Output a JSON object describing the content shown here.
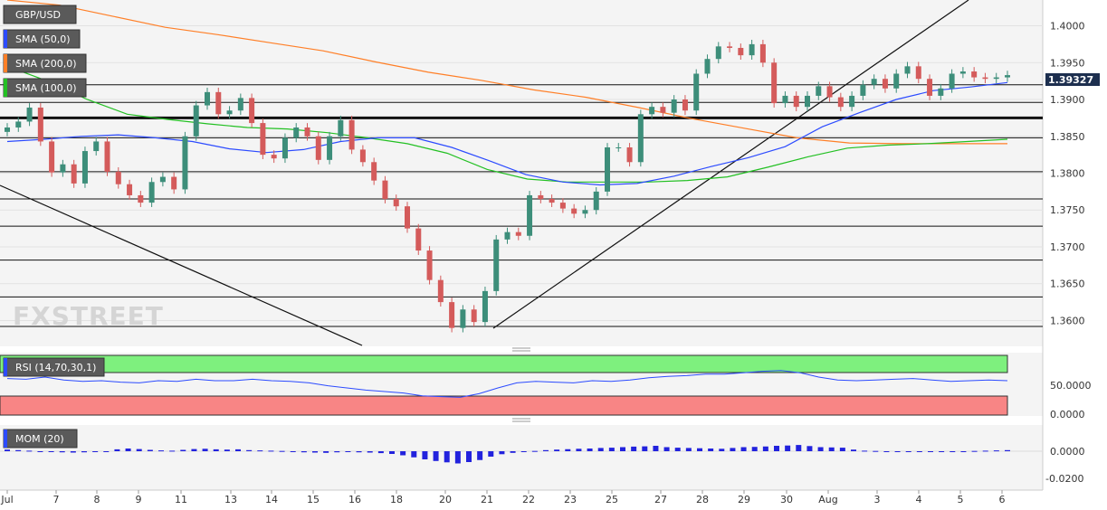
{
  "chart_data": [
    {
      "type": "candlestick",
      "symbol": "GBP/USD",
      "timeframe": "4h",
      "indicators": [
        {
          "name": "SMA (50,0)",
          "color": "#2c4bff"
        },
        {
          "name": "SMA (200,0)",
          "color": "#ff7f27"
        },
        {
          "name": "SMA (100,0)",
          "color": "#23c023"
        }
      ],
      "ylim": [
        1.3565,
        1.4035
      ],
      "y_ticks": [
        "1.4000",
        "1.3950",
        "1.3900",
        "1.3850",
        "1.3800",
        "1.3750",
        "1.3700",
        "1.3650",
        "1.3600"
      ],
      "last_price": "1.39327",
      "x_labels": [
        "Jul",
        "7",
        "8",
        "9",
        "11",
        "13",
        "14",
        "15",
        "16",
        "18",
        "20",
        "21",
        "22",
        "23",
        "25",
        "27",
        "28",
        "29",
        "30",
        "Aug",
        "3",
        "4",
        "5",
        "6"
      ],
      "watermark": "FXSTREET",
      "horizontal_levels": [
        1.392,
        1.3896,
        1.3875,
        1.3848,
        1.3802,
        1.3765,
        1.3728,
        1.3682,
        1.3632,
        1.3592
      ],
      "thick_level": 1.3875,
      "candles_close": [
        1.3862,
        1.387,
        1.3889,
        1.3843,
        1.3801,
        1.3812,
        1.3786,
        1.383,
        1.3843,
        1.3802,
        1.3785,
        1.377,
        1.376,
        1.3788,
        1.3795,
        1.3778,
        1.385,
        1.3892,
        1.391,
        1.388,
        1.3885,
        1.3902,
        1.3868,
        1.3825,
        1.382,
        1.3848,
        1.3862,
        1.385,
        1.3818,
        1.385,
        1.3872,
        1.3832,
        1.3815,
        1.379,
        1.3765,
        1.3755,
        1.3725,
        1.3695,
        1.3655,
        1.3625,
        1.359,
        1.3615,
        1.3598,
        1.364,
        1.371,
        1.372,
        1.3715,
        1.377,
        1.3765,
        1.376,
        1.3752,
        1.3745,
        1.375,
        1.3775,
        1.3835,
        1.3835,
        1.3815,
        1.388,
        1.389,
        1.3882,
        1.39,
        1.3885,
        1.3935,
        1.3955,
        1.3972,
        1.397,
        1.396,
        1.3975,
        1.395,
        1.3895,
        1.3905,
        1.389,
        1.3905,
        1.3918,
        1.3903,
        1.389,
        1.3905,
        1.392,
        1.3928,
        1.3915,
        1.3935,
        1.3945,
        1.3928,
        1.3905,
        1.3915,
        1.3935,
        1.3938,
        1.393,
        1.3928,
        1.393,
        1.3933
      ],
      "sma50": [
        1.3843,
        1.3846,
        1.385,
        1.3852,
        1.3848,
        1.3843,
        1.3833,
        1.3828,
        1.3832,
        1.3843,
        1.3848,
        1.3848,
        1.3835,
        1.3817,
        1.3798,
        1.3788,
        1.3784,
        1.3786,
        1.3796,
        1.3809,
        1.3821,
        1.3836,
        1.3863,
        1.3882,
        1.39,
        1.3912,
        1.3917,
        1.3923
      ],
      "sma200": [
        1.4035,
        1.4028,
        1.4013,
        1.3998,
        1.3988,
        1.3977,
        1.3966,
        1.3951,
        1.3937,
        1.3926,
        1.3913,
        1.3903,
        1.3889,
        1.3874,
        1.3861,
        1.3848,
        1.3841,
        1.384,
        1.384,
        1.384
      ],
      "sma100": [
        1.3945,
        1.3925,
        1.39,
        1.388,
        1.3873,
        1.3867,
        1.3862,
        1.386,
        1.3855,
        1.3848,
        1.384,
        1.3827,
        1.3805,
        1.3792,
        1.3788,
        1.3788,
        1.3788,
        1.379,
        1.3795,
        1.3808,
        1.3822,
        1.3834,
        1.3838,
        1.384,
        1.3843,
        1.3846
      ]
    },
    {
      "type": "line",
      "title": "RSI (14,70,30,1)",
      "y_ticks": [
        "50.0000",
        "0.0000"
      ],
      "overbought": 70,
      "oversold": 30,
      "values": [
        58,
        57,
        60,
        56,
        54,
        55,
        53,
        52,
        55,
        54,
        57,
        55,
        55,
        57,
        55,
        54,
        52,
        48,
        45,
        42,
        40,
        38,
        34,
        33,
        32,
        37,
        45,
        52,
        54,
        53,
        52,
        55,
        54,
        56,
        59,
        61,
        62,
        64,
        64,
        66,
        68,
        69,
        66,
        60,
        56,
        55,
        56,
        57,
        58,
        56,
        54,
        55,
        56,
        55
      ]
    },
    {
      "type": "bar",
      "title": "MOM (20)",
      "y_ticks": [
        "0.0000",
        "-0.0200"
      ],
      "values": [
        0.0012,
        0.0008,
        0.0004,
        -0.0004,
        -0.0006,
        -0.0008,
        -0.001,
        -0.0008,
        -0.0006,
        -0.0002,
        0.0014,
        0.002,
        0.0016,
        0.001,
        0.0006,
        0.0004,
        0.001,
        0.0016,
        0.0018,
        0.0014,
        0.0012,
        0.0014,
        0.0008,
        0.0006,
        0.0004,
        0.0002,
        -0.0004,
        -0.0008,
        -0.001,
        -0.0012,
        -0.0008,
        -0.0006,
        -0.0008,
        -0.001,
        -0.0014,
        -0.002,
        -0.003,
        -0.0045,
        -0.006,
        -0.0072,
        -0.0082,
        -0.009,
        -0.008,
        -0.0065,
        -0.004,
        -0.0022,
        -0.0012,
        -0.0004,
        0.0002,
        0.0008,
        0.0012,
        0.0015,
        0.0018,
        0.002,
        0.0024,
        0.0026,
        0.003,
        0.0034,
        0.0036,
        0.004,
        0.003,
        0.0026,
        0.0024,
        0.0022,
        0.002,
        0.0018,
        0.0024,
        0.003,
        0.0032,
        0.0035,
        0.004,
        0.0042,
        0.0046,
        0.0038,
        0.003,
        0.0028,
        0.0026,
        0.0012,
        0.0004,
        0.0002,
        -0.0002,
        -0.0004,
        -0.0004,
        -0.0006,
        -0.0004,
        -0.0002,
        -0.0002,
        -0.0001,
        0.0002,
        0.0004,
        0.0006,
        0.0008
      ]
    }
  ]
}
